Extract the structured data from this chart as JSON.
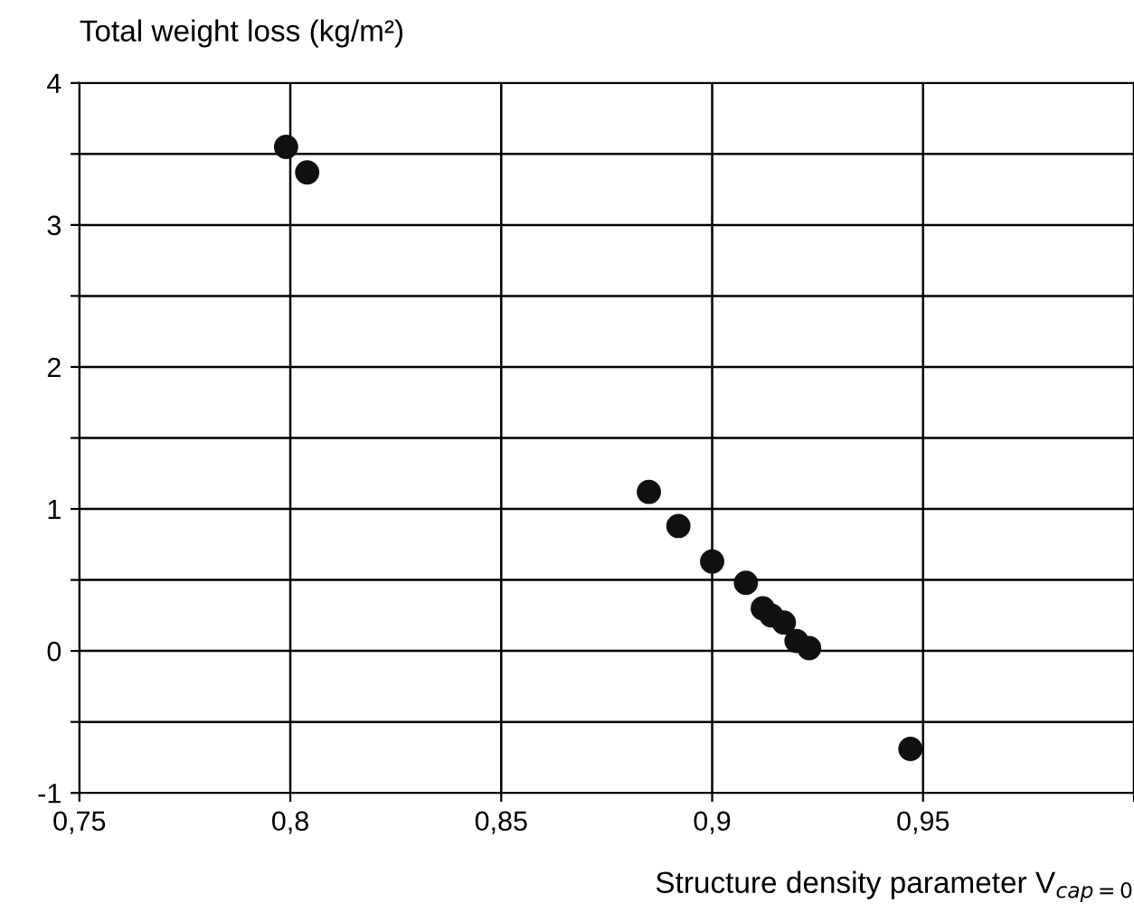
{
  "chart_data": {
    "type": "scatter",
    "ylabel": "Total weight loss (kg/m²)",
    "xlabel": "Structure density parameter V$_{cap=0}$",
    "x": [
      0.799,
      0.804,
      0.885,
      0.892,
      0.9,
      0.908,
      0.912,
      0.914,
      0.917,
      0.92,
      0.923,
      0.947
    ],
    "series": [
      {
        "color": "#111111",
        "values": [
          3.55,
          3.37,
          1.12,
          0.88,
          0.63,
          0.48,
          0.3,
          0.25,
          0.2,
          0.07,
          0.02,
          -0.69
        ]
      }
    ],
    "xlim": [
      0.75,
      1.0
    ],
    "ylim": [
      -1,
      4
    ],
    "xticks": [
      {
        "value": 0.75,
        "label": "0,75"
      },
      {
        "value": 0.8,
        "label": "0,8"
      },
      {
        "value": 0.85,
        "label": "0,85"
      },
      {
        "value": 0.9,
        "label": "0,9"
      },
      {
        "value": 0.95,
        "label": "0,95"
      },
      {
        "value": 1.0,
        "label": null
      }
    ],
    "yticks": [
      -1,
      {
        "value": -0.5,
        "label": null
      },
      0,
      {
        "value": 0.5,
        "label": null
      },
      1,
      {
        "value": 1.5,
        "label": null
      },
      2,
      {
        "value": 2.5,
        "label": null
      },
      3,
      {
        "value": 3.5,
        "label": null
      },
      4
    ],
    "grid": true,
    "marker": "circle"
  }
}
